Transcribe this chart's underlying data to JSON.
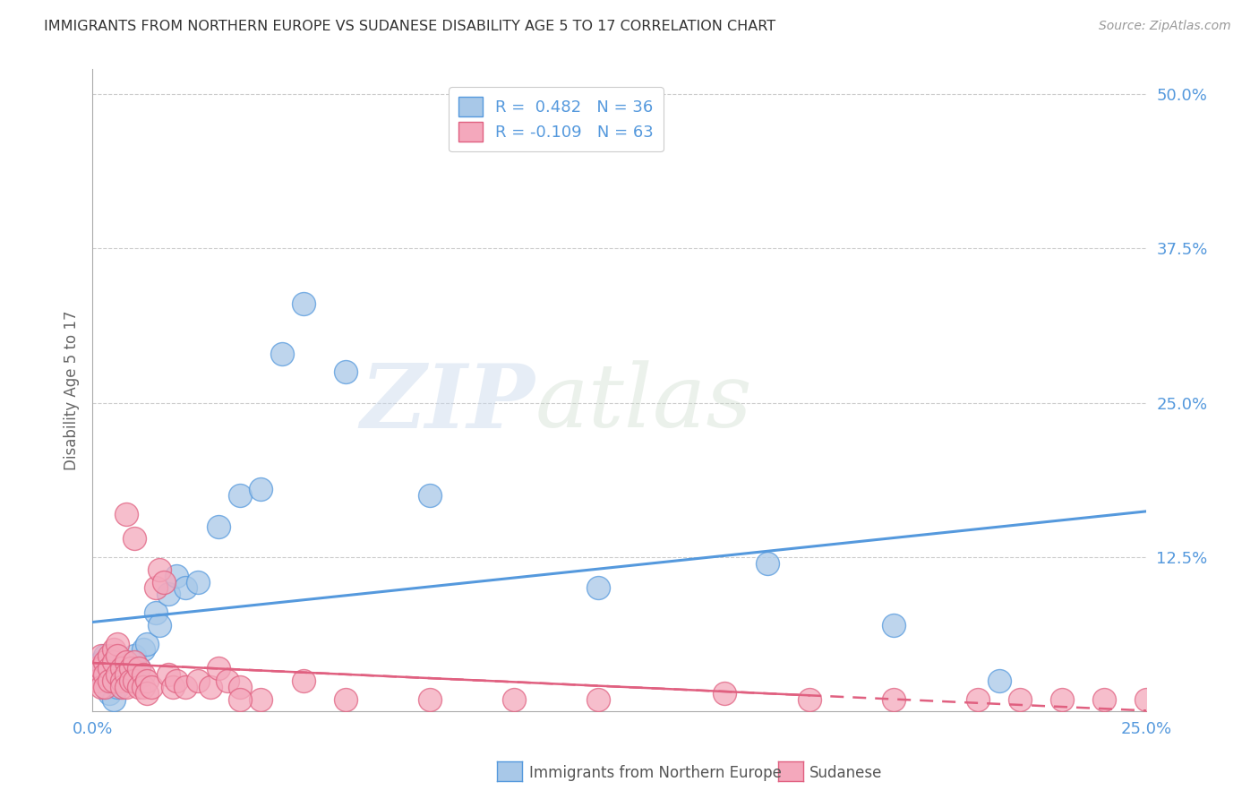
{
  "title": "IMMIGRANTS FROM NORTHERN EUROPE VS SUDANESE DISABILITY AGE 5 TO 17 CORRELATION CHART",
  "source": "Source: ZipAtlas.com",
  "ylabel": "Disability Age 5 to 17",
  "blue_color": "#a8c8e8",
  "pink_color": "#f4a8bc",
  "blue_line_color": "#5599dd",
  "pink_line_color": "#e06080",
  "axis_label_color": "#5599dd",
  "title_color": "#333333",
  "source_color": "#999999",
  "ylabel_color": "#666666",
  "grid_color": "#cccccc",
  "blue_scatter_x": [
    0.001,
    0.002,
    0.002,
    0.003,
    0.003,
    0.004,
    0.004,
    0.005,
    0.005,
    0.006,
    0.006,
    0.007,
    0.008,
    0.009,
    0.01,
    0.01,
    0.011,
    0.012,
    0.013,
    0.015,
    0.016,
    0.018,
    0.02,
    0.022,
    0.025,
    0.03,
    0.035,
    0.04,
    0.045,
    0.05,
    0.06,
    0.08,
    0.12,
    0.16,
    0.19,
    0.215
  ],
  "blue_scatter_y": [
    0.035,
    0.04,
    0.03,
    0.025,
    0.045,
    0.02,
    0.015,
    0.03,
    0.01,
    0.025,
    0.02,
    0.035,
    0.04,
    0.03,
    0.045,
    0.025,
    0.035,
    0.05,
    0.055,
    0.08,
    0.07,
    0.095,
    0.11,
    0.1,
    0.105,
    0.15,
    0.175,
    0.18,
    0.29,
    0.33,
    0.275,
    0.175,
    0.1,
    0.12,
    0.07,
    0.025
  ],
  "pink_scatter_x": [
    0.001,
    0.001,
    0.002,
    0.002,
    0.002,
    0.003,
    0.003,
    0.003,
    0.004,
    0.004,
    0.004,
    0.005,
    0.005,
    0.005,
    0.006,
    0.006,
    0.006,
    0.007,
    0.007,
    0.007,
    0.008,
    0.008,
    0.008,
    0.009,
    0.009,
    0.01,
    0.01,
    0.011,
    0.011,
    0.012,
    0.012,
    0.013,
    0.013,
    0.014,
    0.015,
    0.016,
    0.017,
    0.018,
    0.019,
    0.02,
    0.022,
    0.025,
    0.028,
    0.03,
    0.032,
    0.035,
    0.04,
    0.05,
    0.06,
    0.08,
    0.1,
    0.12,
    0.15,
    0.17,
    0.19,
    0.21,
    0.22,
    0.23,
    0.24,
    0.25,
    0.008,
    0.01,
    0.035
  ],
  "pink_scatter_y": [
    0.035,
    0.025,
    0.045,
    0.035,
    0.02,
    0.04,
    0.03,
    0.02,
    0.045,
    0.035,
    0.025,
    0.05,
    0.04,
    0.025,
    0.055,
    0.045,
    0.03,
    0.035,
    0.025,
    0.02,
    0.04,
    0.03,
    0.02,
    0.035,
    0.025,
    0.04,
    0.025,
    0.035,
    0.02,
    0.03,
    0.02,
    0.025,
    0.015,
    0.02,
    0.1,
    0.115,
    0.105,
    0.03,
    0.02,
    0.025,
    0.02,
    0.025,
    0.02,
    0.035,
    0.025,
    0.02,
    0.01,
    0.025,
    0.01,
    0.01,
    0.01,
    0.01,
    0.015,
    0.01,
    0.01,
    0.01,
    0.01,
    0.01,
    0.01,
    0.01,
    0.16,
    0.14,
    0.01
  ],
  "xlim": [
    0.0,
    0.25
  ],
  "ylim": [
    0.0,
    0.52
  ],
  "x_tick_vals": [
    0.0,
    0.25
  ],
  "x_tick_labels": [
    "0.0%",
    "25.0%"
  ],
  "y_tick_vals": [
    0.125,
    0.25,
    0.375,
    0.5
  ],
  "y_tick_labels": [
    "12.5%",
    "25.0%",
    "37.5%",
    "50.0%"
  ],
  "legend1_text": "R =  0.482   N = 36",
  "legend2_text": "R = -0.109   N = 63",
  "bottom_legend1": "Immigrants from Northern Europe",
  "bottom_legend2": "Sudanese"
}
